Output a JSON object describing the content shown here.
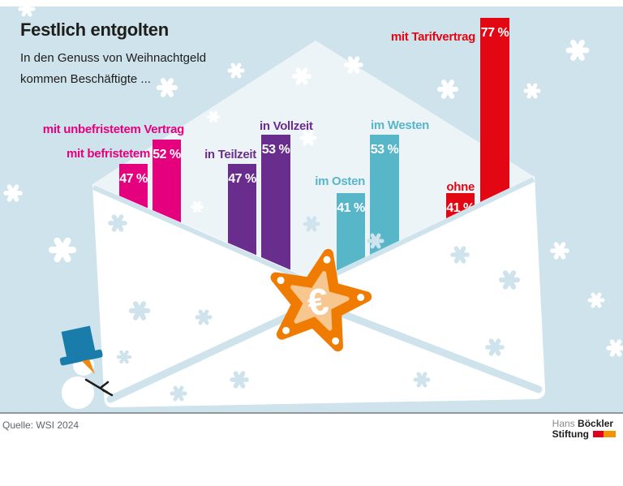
{
  "header": {
    "title": "Festlich entgolten",
    "subtitle_line1": "In den Genuss von Weihnachtgeld",
    "subtitle_line2": "kommen Beschäftigte ..."
  },
  "chart_data": {
    "type": "bar",
    "unit": "%",
    "title": "Festlich entgolten",
    "value_range": [
      0,
      100
    ],
    "bars": [
      {
        "label": "mit befristetem",
        "value": 47,
        "value_label": "47 %",
        "color": "#e5007d"
      },
      {
        "label": "mit unbefristetem Vertrag",
        "value": 52,
        "value_label": "52 %",
        "color": "#e5007d"
      },
      {
        "label": "in Teilzeit",
        "value": 47,
        "value_label": "47 %",
        "color": "#692e8d"
      },
      {
        "label": "in Vollzeit",
        "value": 53,
        "value_label": "53 %",
        "color": "#692e8d"
      },
      {
        "label": "im Osten",
        "value": 41,
        "value_label": "41 %",
        "color": "#57b6c8"
      },
      {
        "label": "im Westen",
        "value": 53,
        "value_label": "53 %",
        "color": "#57b6c8"
      },
      {
        "label": "ohne",
        "value": 41,
        "value_label": "41 %",
        "color": "#e30613"
      },
      {
        "label": "mit Tarifvertrag",
        "value": 77,
        "value_label": "77 %",
        "color": "#e30613"
      }
    ]
  },
  "star_badge": {
    "symbol": "€"
  },
  "footer": {
    "source": "Quelle: WSI 2024",
    "logo": {
      "name_light": "Hans",
      "name_bold": "Böckler",
      "line2_bold": "Stiftung"
    }
  },
  "colors": {
    "background": "#cee3eb",
    "envelope_inside": "#edf4f7",
    "envelope_front": "#ffffff",
    "star_orange": "#ef7c00",
    "star_inner": "#f8c68f",
    "logo_red": "#e2001a",
    "logo_orange": "#f29400"
  }
}
